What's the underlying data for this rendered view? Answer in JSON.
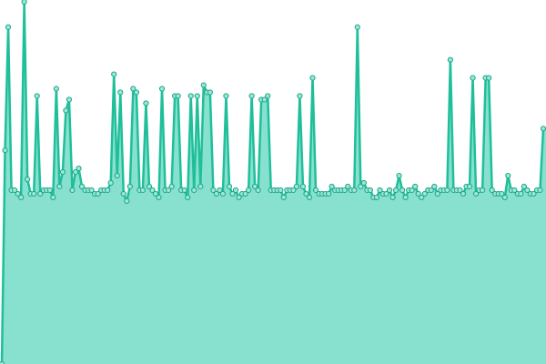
{
  "chart_data": {
    "type": "area",
    "title": "",
    "xlabel": "",
    "ylabel": "",
    "ylim": [
      0,
      100
    ],
    "grid": false,
    "legend": "none",
    "colors": {
      "fill": "#88e0cf",
      "line": "#1fbf9a",
      "marker_fill": "#9fe6d6",
      "marker_stroke": "#1aa88a",
      "background": "#ffffff"
    },
    "x": [
      1,
      2,
      3,
      4,
      5,
      6,
      7,
      8,
      9,
      10,
      11,
      12,
      13,
      14,
      15,
      16,
      17,
      18,
      19,
      20,
      21,
      22,
      23,
      24,
      25,
      26,
      27,
      28,
      29,
      30,
      31,
      32,
      33,
      34,
      35,
      36,
      37,
      38,
      39,
      40,
      41,
      42,
      43,
      44,
      45,
      46,
      47,
      48,
      49,
      50,
      51,
      52,
      53,
      54,
      55,
      56,
      57,
      58,
      59,
      60,
      61,
      62,
      63,
      64,
      65,
      66,
      67,
      68,
      69,
      70,
      71,
      72,
      73,
      74,
      75,
      76,
      77,
      78,
      79,
      80,
      81,
      82,
      83,
      84,
      85,
      86,
      87,
      88,
      89,
      90,
      91,
      92,
      93,
      94,
      95,
      96,
      97,
      98,
      99,
      100,
      101,
      102,
      103,
      104,
      105,
      106,
      107,
      108,
      109,
      110,
      111,
      112,
      113,
      114,
      115,
      116,
      117,
      118,
      119,
      120,
      121,
      122,
      123,
      124,
      125,
      126,
      127,
      128,
      129,
      130,
      131,
      132,
      133,
      134,
      135,
      136,
      137,
      138,
      139,
      140,
      141,
      142,
      143,
      144,
      145,
      146,
      147,
      148,
      149,
      150,
      151,
      152,
      153,
      154,
      155,
      156,
      157,
      158,
      159,
      160,
      161,
      162,
      163,
      164,
      165,
      166,
      167,
      168,
      169,
      170
    ],
    "series": [
      {
        "name": "",
        "values": [
          0,
          59,
          93,
          48,
          48,
          47,
          46,
          100,
          51,
          47,
          47,
          74,
          47,
          48,
          48,
          48,
          46,
          76,
          49,
          53,
          70,
          73,
          48,
          53,
          54,
          49,
          48,
          48,
          48,
          47,
          47,
          48,
          48,
          48,
          50,
          80,
          52,
          75,
          47,
          45,
          49,
          76,
          75,
          48,
          48,
          72,
          49,
          48,
          47,
          46,
          76,
          48,
          48,
          49,
          74,
          74,
          48,
          48,
          46,
          74,
          48,
          74,
          49,
          77,
          75,
          75,
          48,
          47,
          48,
          47,
          74,
          49,
          47,
          48,
          46,
          47,
          47,
          48,
          74,
          49,
          48,
          73,
          73,
          74,
          48,
          48,
          48,
          48,
          46,
          48,
          48,
          48,
          49,
          74,
          49,
          47,
          46,
          79,
          48,
          47,
          47,
          47,
          47,
          49,
          48,
          48,
          48,
          48,
          49,
          48,
          48,
          93,
          49,
          50,
          48,
          48,
          46,
          46,
          48,
          47,
          47,
          48,
          46,
          48,
          52,
          48,
          46,
          48,
          48,
          49,
          47,
          46,
          47,
          48,
          48,
          49,
          47,
          48,
          48,
          48,
          84,
          48,
          48,
          48,
          47,
          49,
          49,
          79,
          47,
          48,
          48,
          79,
          79,
          48,
          47,
          47,
          47,
          46,
          52,
          48,
          48,
          47,
          47,
          49,
          48,
          47,
          47,
          48,
          48,
          65
        ]
      }
    ]
  }
}
